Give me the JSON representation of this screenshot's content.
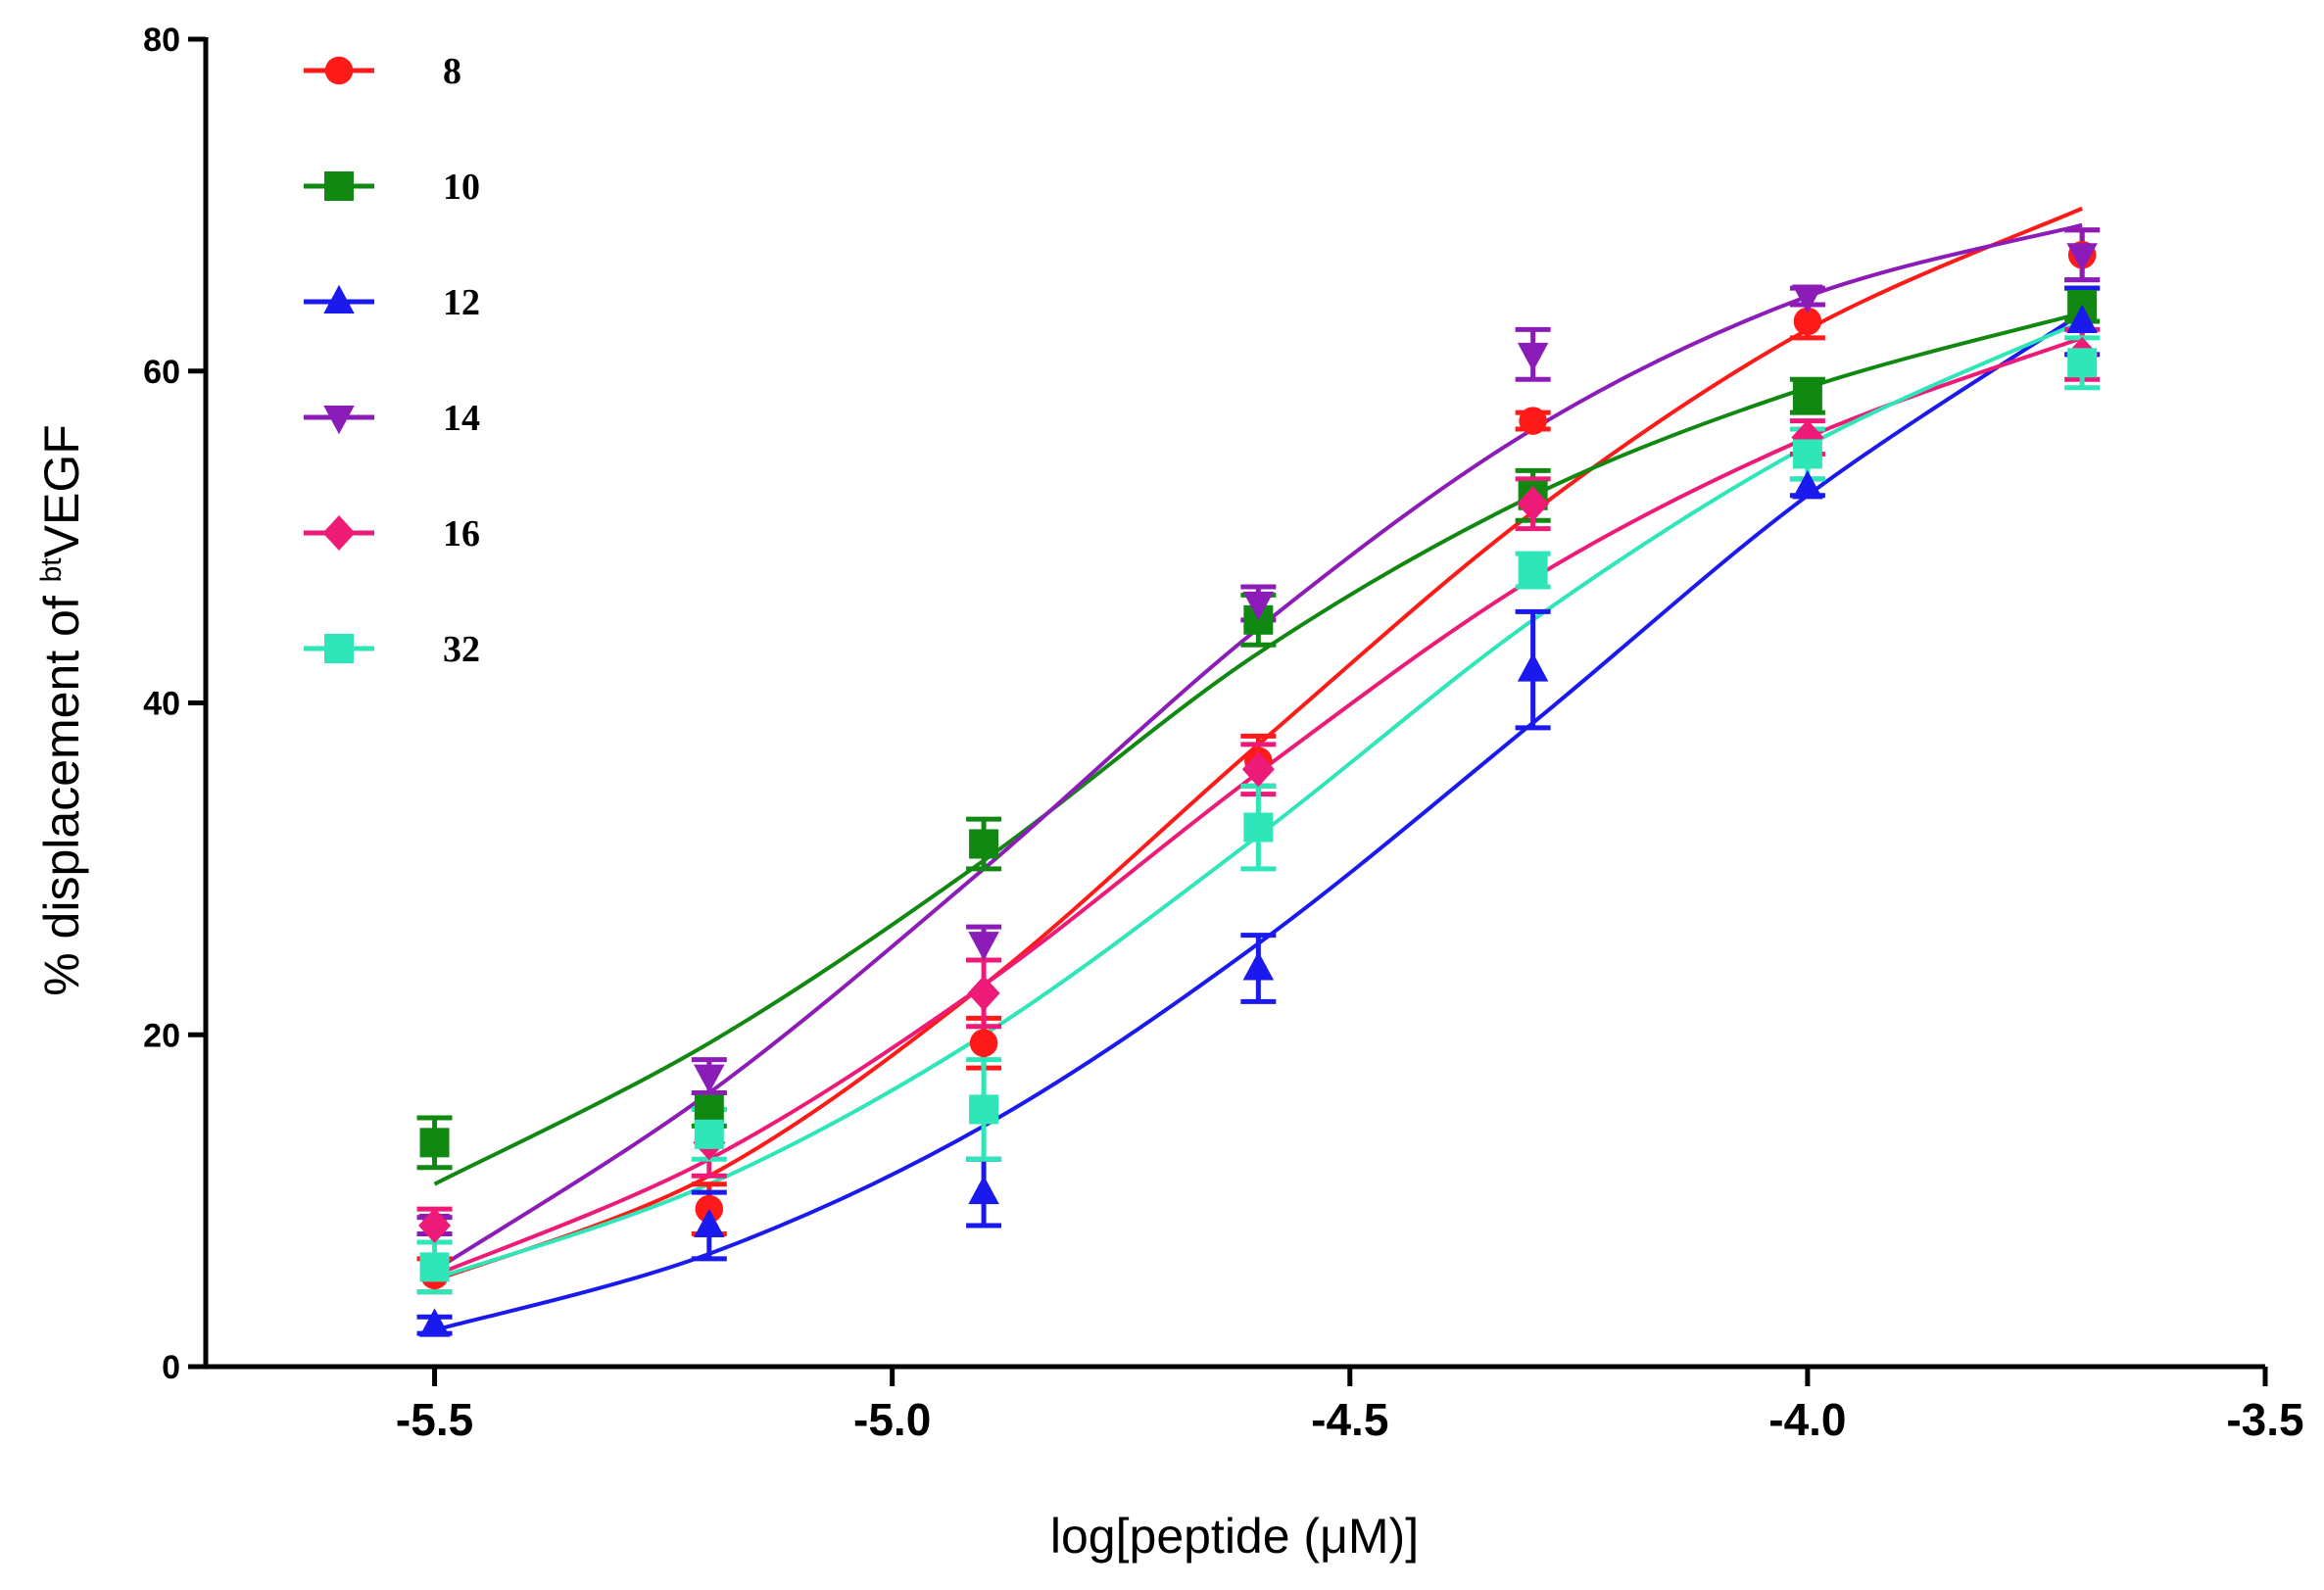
{
  "chart_data": {
    "type": "scatter",
    "title": "",
    "xlabel": "log[peptide (μM)]",
    "ylabel": {
      "prefix": "% displacement of ",
      "superscript": "bt",
      "suffix": "VEGF"
    },
    "xlim": [
      -5.75,
      -3.5
    ],
    "ylim": [
      0,
      80
    ],
    "x_ticks": [
      -5.5,
      -5.0,
      -4.5,
      -4.0,
      -3.5
    ],
    "x_tick_labels": [
      "-5.5",
      "-5.0",
      "-4.5",
      "-4.0",
      "-3.5"
    ],
    "y_ticks": [
      0,
      20,
      40,
      60,
      80
    ],
    "y_tick_labels": [
      "0",
      "20",
      "40",
      "60",
      "80"
    ],
    "grid": false,
    "legend_position": "top-left",
    "x": [
      -5.5,
      -5.2,
      -4.9,
      -4.6,
      -4.3,
      -4.0,
      -3.7
    ],
    "series": [
      {
        "name": "8",
        "color": "#ff1a1a",
        "marker": "circle",
        "values": [
          5.5,
          9.5,
          19.5,
          36.5,
          57,
          63,
          67
        ],
        "errors": [
          1.0,
          1.5,
          1.5,
          1.5,
          0.5,
          1.0,
          1.5
        ],
        "fit": [
          5.2,
          11.5,
          23.0,
          37.5,
          51.5,
          62.5,
          69.8
        ]
      },
      {
        "name": "10",
        "color": "#118811",
        "marker": "square",
        "values": [
          13.5,
          15.5,
          31.5,
          45,
          52.5,
          58.5,
          64
        ],
        "errors": [
          1.5,
          1.0,
          1.5,
          1.5,
          1.5,
          1.0,
          1.0
        ],
        "fit": [
          11.0,
          19.5,
          30.5,
          43.0,
          52.5,
          59.0,
          63.5
        ]
      },
      {
        "name": "12",
        "color": "#1a1aee",
        "marker": "triangle-up",
        "values": [
          2.5,
          8.5,
          10.5,
          24,
          42,
          53,
          63
        ],
        "errors": [
          0.5,
          2.0,
          2.0,
          2.0,
          3.5,
          0.5,
          2.0
        ],
        "fit": [
          2.2,
          6.8,
          14.5,
          25.5,
          38.8,
          52.5,
          63.5
        ]
      },
      {
        "name": "14",
        "color": "#8c1cb8",
        "marker": "triangle-down",
        "values": [
          8.5,
          17.5,
          25.5,
          46,
          61,
          64.5,
          67
        ],
        "errors": [
          0.5,
          1.0,
          1.0,
          1.0,
          1.5,
          0.5,
          1.5
        ],
        "fit": [
          5.8,
          16.5,
          30.0,
          44.5,
          56.5,
          64.5,
          68.8
        ]
      },
      {
        "name": "16",
        "color": "#ee1a77",
        "marker": "diamond",
        "values": [
          8.5,
          13.5,
          22.5,
          36,
          52,
          56,
          61
        ],
        "errors": [
          1.0,
          2.0,
          2.0,
          1.5,
          1.5,
          1.0,
          1.5
        ],
        "fit": [
          5.5,
          12.5,
          23.0,
          35.8,
          47.5,
          56.0,
          62.0
        ]
      },
      {
        "name": "32",
        "color": "#2ee6b8",
        "marker": "square",
        "values": [
          6,
          14,
          15.5,
          32.5,
          48,
          55,
          60.5
        ],
        "errors": [
          1.5,
          1.5,
          3.0,
          2.5,
          1.0,
          1.5,
          1.5
        ],
        "fit": [
          5.3,
          11.0,
          20.0,
          32.0,
          45.0,
          55.5,
          63.0
        ]
      }
    ]
  }
}
